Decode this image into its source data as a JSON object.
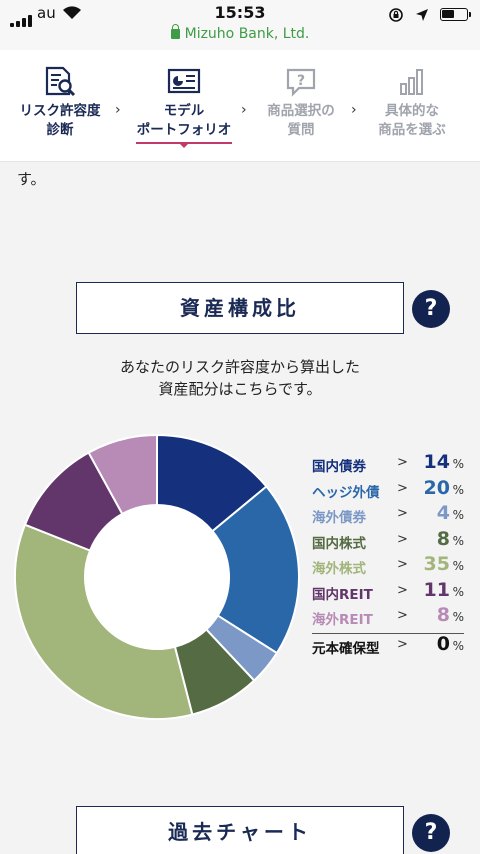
{
  "status_bar": {
    "carrier": "au",
    "time": "15:53"
  },
  "browser": {
    "url_text": "Mizuho Bank, Ltd."
  },
  "steps": [
    {
      "label_line1": "リスク許容度",
      "label_line2": "診断",
      "icon": "document-search-icon",
      "state": "done"
    },
    {
      "label_line1": "モデル",
      "label_line2": "ポートフォリオ",
      "icon": "chart-board-icon",
      "state": "active"
    },
    {
      "label_line1": "商品選択の",
      "label_line2": "質問",
      "icon": "question-bubble-icon",
      "state": "future"
    },
    {
      "label_line1": "具体的な",
      "label_line2": "商品を選ぶ",
      "icon": "bar-chart-icon",
      "state": "future"
    }
  ],
  "lead_fragment": "す。",
  "asset_section": {
    "title": "資産構成比",
    "help_label": "?",
    "description_line1": "あなたのリスク許容度から算出した",
    "description_line2": "資産配分はこちらです。"
  },
  "allocation": {
    "arrow": ">",
    "pct_sign": "%",
    "items": [
      {
        "name": "国内債券",
        "value": "14",
        "color": "#15317e"
      },
      {
        "name": "ヘッジ外債",
        "value": "20",
        "color": "#2a67a9"
      },
      {
        "name": "海外債券",
        "value": "4",
        "color": "#7b98c6"
      },
      {
        "name": "国内株式",
        "value": "8",
        "color": "#546b43"
      },
      {
        "name": "海外株式",
        "value": "35",
        "color": "#a2b57a"
      },
      {
        "name": "国内REIT",
        "value": "11",
        "color": "#62366a"
      },
      {
        "name": "海外REIT",
        "value": "8",
        "color": "#b78bb6"
      },
      {
        "name": "元本確保型",
        "value": "0",
        "color": "#111111"
      }
    ]
  },
  "chart_data": {
    "type": "pie",
    "style": "donut",
    "categories": [
      "国内債券",
      "ヘッジ外債",
      "海外債券",
      "国内株式",
      "海外株式",
      "国内REIT",
      "海外REIT",
      "元本確保型"
    ],
    "values": [
      14,
      20,
      4,
      8,
      35,
      11,
      8,
      0
    ],
    "colors": [
      "#15317e",
      "#2a67a9",
      "#7b98c6",
      "#546b43",
      "#a2b57a",
      "#62366a",
      "#b78bb6",
      "#111111"
    ],
    "unit": "%",
    "legend_placement": "right"
  },
  "past_chart_section": {
    "title": "過去チャート",
    "help_label": "?"
  }
}
